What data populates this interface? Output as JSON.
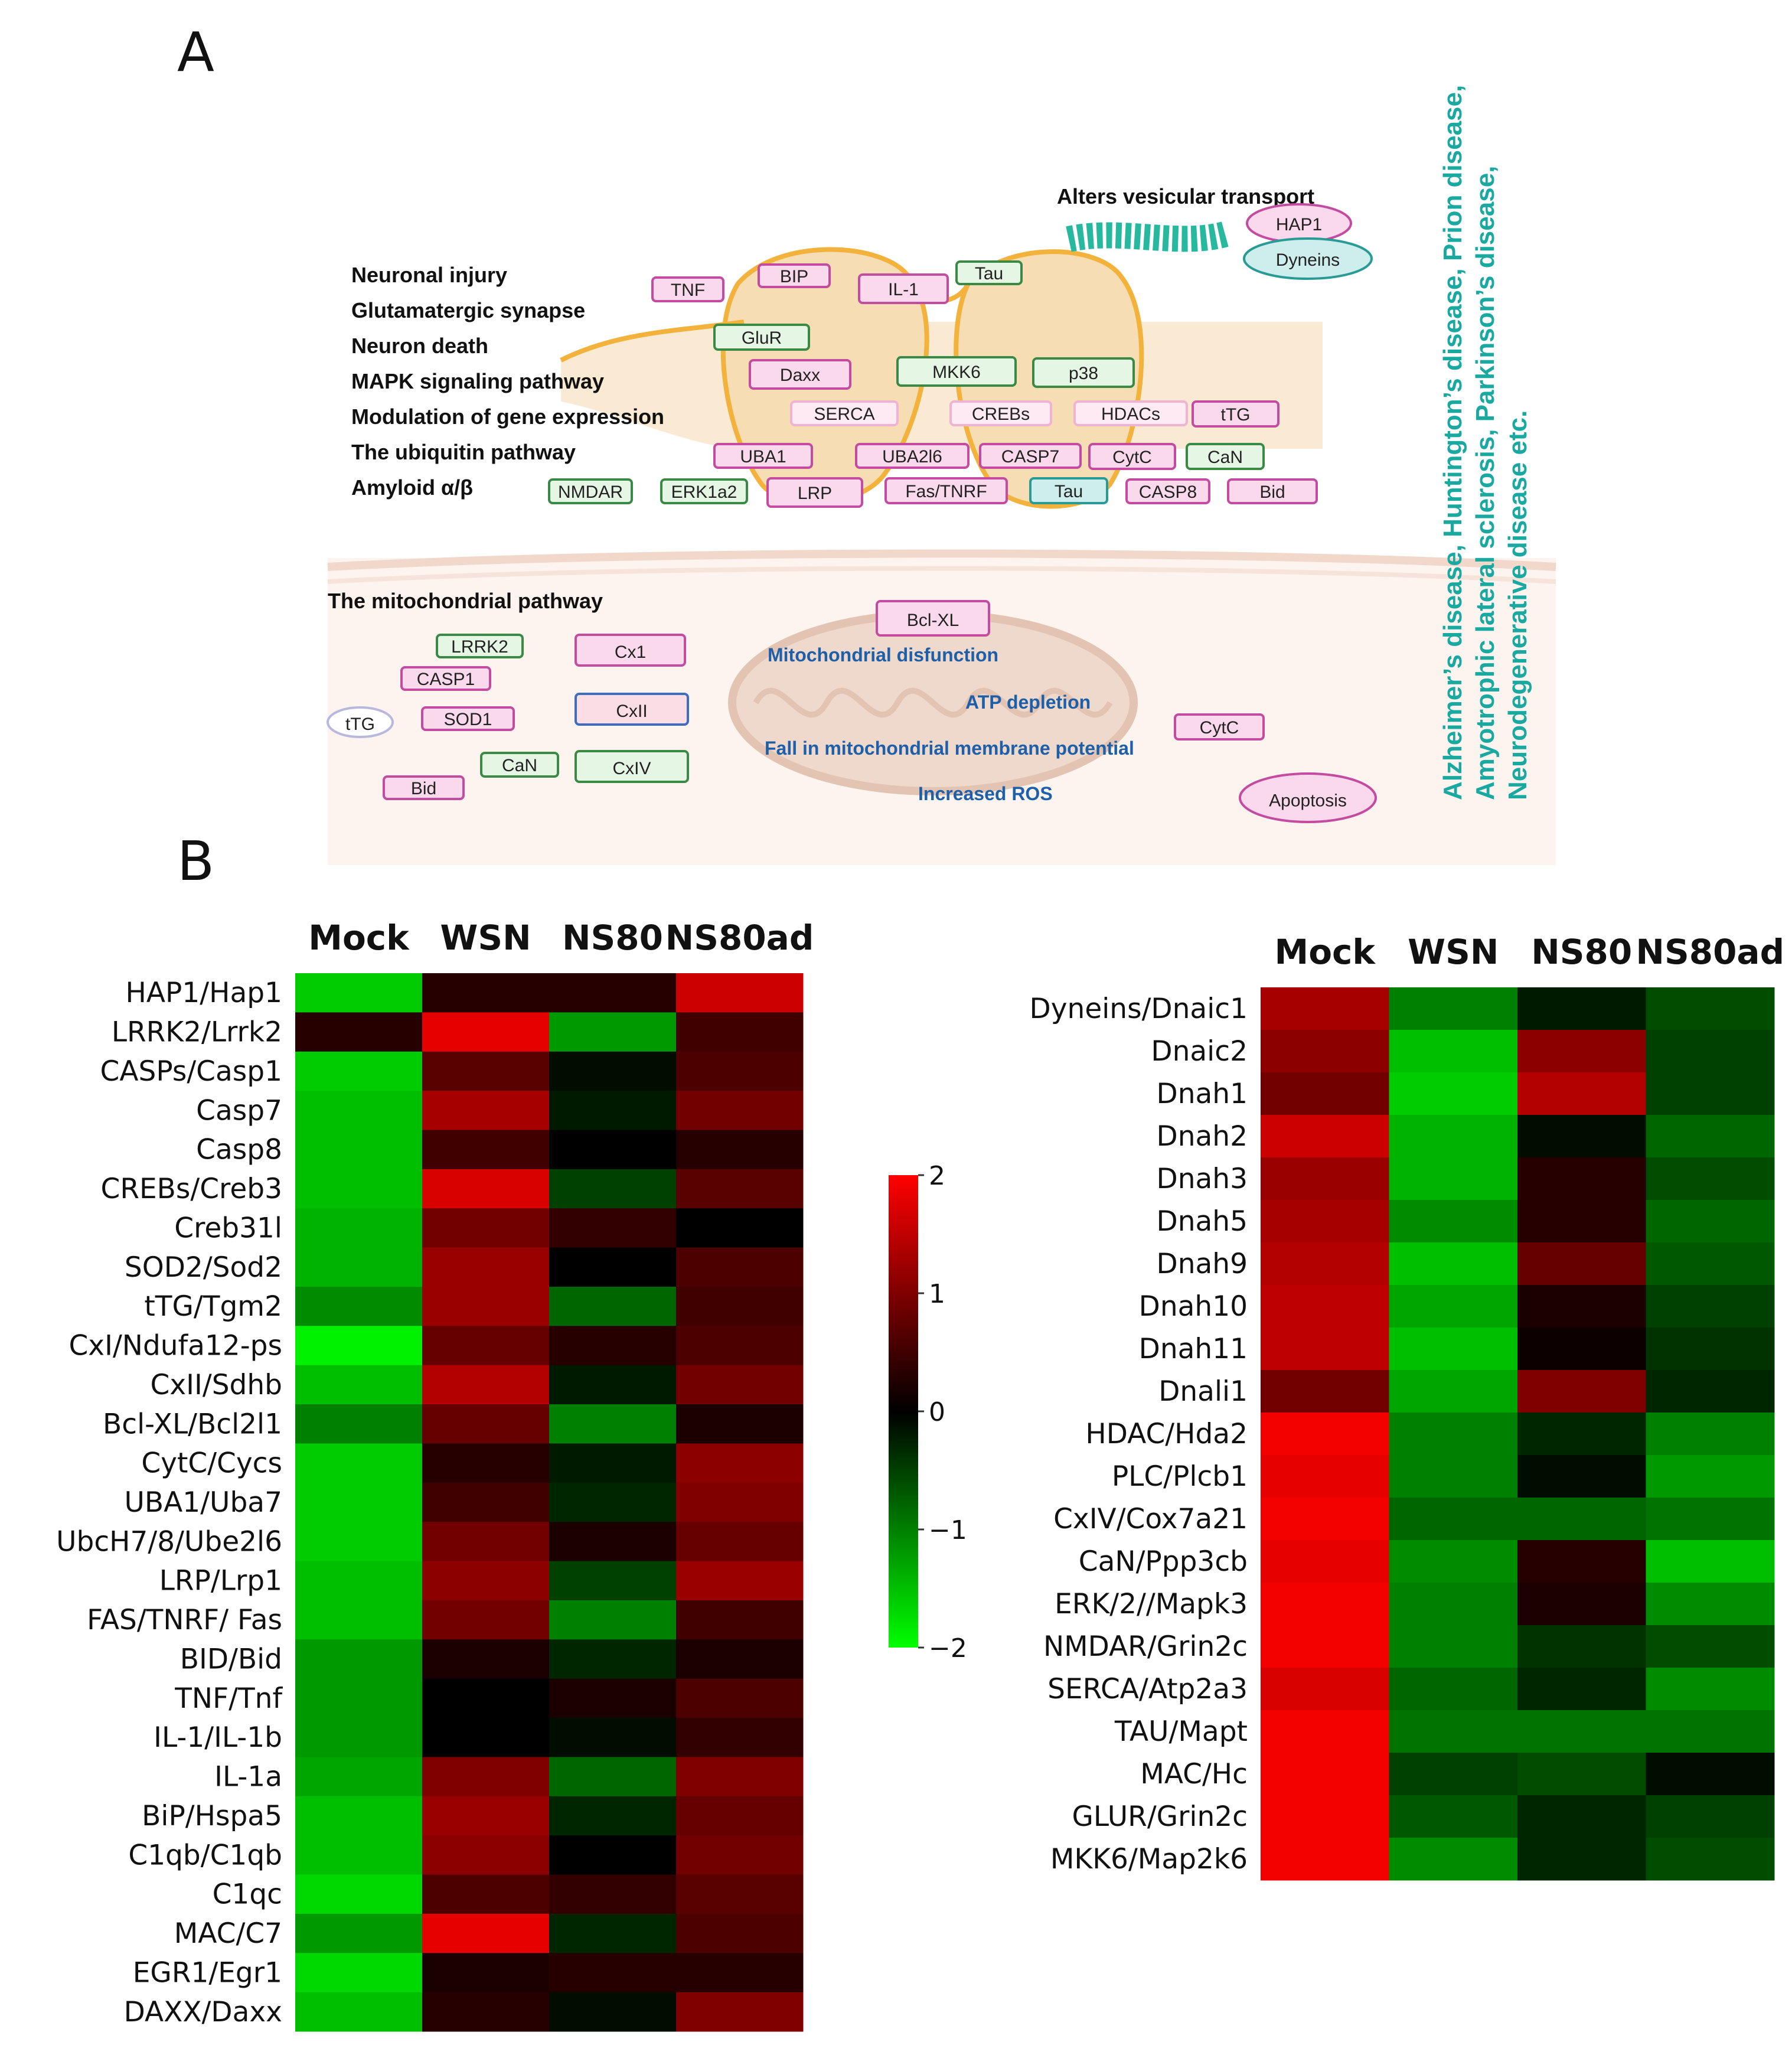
{
  "panel_a": {
    "label": "A",
    "side_labels": [
      "Neuronal injury",
      "Glutamatergic synapse",
      "Neuron death",
      "MAPK signaling pathway",
      "Modulation of gene expression",
      "The ubiquitin pathway",
      "Amyloid α/β"
    ],
    "vesicular_label": "Alters vesicular transport",
    "synapse_nodes": [
      {
        "text": "TNF",
        "color": "pink"
      },
      {
        "text": "BIP",
        "color": "pink"
      },
      {
        "text": "IL-1",
        "color": "pink"
      },
      {
        "text": "Tau",
        "color": "green"
      },
      {
        "text": "GluR",
        "color": "green"
      },
      {
        "text": "Daxx",
        "color": "pink"
      },
      {
        "text": "MKK6",
        "color": "green"
      },
      {
        "text": "p38",
        "color": "green"
      },
      {
        "text": "SERCA",
        "color": "lightpink"
      },
      {
        "text": "CREBs",
        "color": "lightpink"
      },
      {
        "text": "HDACs",
        "color": "lightpink"
      },
      {
        "text": "tTG",
        "color": "pink"
      },
      {
        "text": "UBA1",
        "color": "pink"
      },
      {
        "text": "UBA2l6",
        "color": "pink"
      },
      {
        "text": "CASP7",
        "color": "pink"
      },
      {
        "text": "CytC",
        "color": "pink"
      },
      {
        "text": "CaN",
        "color": "green"
      },
      {
        "text": "NMDAR",
        "color": "green"
      },
      {
        "text": "ERK1a2",
        "color": "green"
      },
      {
        "text": "LRP",
        "color": "pink"
      },
      {
        "text": "Fas/TNRF",
        "color": "pink"
      },
      {
        "text": "Tau",
        "color": "teal"
      },
      {
        "text": "CASP8",
        "color": "pink"
      },
      {
        "text": "Bid",
        "color": "pink"
      }
    ],
    "hap1": "HAP1",
    "dyneins": "Dyneins",
    "mito_title": "The mitochondrial pathway",
    "mito_nodes": [
      {
        "text": "LRRK2",
        "color": "green"
      },
      {
        "text": "CASP1",
        "color": "pink"
      },
      {
        "text": "tTG",
        "color": "lavender"
      },
      {
        "text": "SOD1",
        "color": "pink"
      },
      {
        "text": "Bid",
        "color": "pink"
      },
      {
        "text": "CaN",
        "color": "green"
      },
      {
        "text": "Cx1",
        "color": "pink"
      },
      {
        "text": "CxII",
        "color": "blue"
      },
      {
        "text": "CxIV",
        "color": "green"
      },
      {
        "text": "Bcl-XL",
        "color": "pink"
      },
      {
        "text": "CytC",
        "color": "pink"
      },
      {
        "text": "Apoptosis",
        "color": "pink"
      }
    ],
    "mito_effects": [
      "Mitochondrial disfunction",
      "ATP depletion",
      "Fall in mitochondrial membrane potential",
      "Increased ROS"
    ],
    "disease_lines": [
      "Alzheimer’s disease, Huntington’s disease, Prion disease,",
      "Amyotrophic lateral sclerosis, Parkinson’s disease,",
      "Neurodegenerative disease etc."
    ]
  },
  "panel_b": {
    "label": "B",
    "colorbar": {
      "ticks": [
        "2",
        "1",
        "0",
        "−1",
        "−2"
      ],
      "min": -2,
      "max": 2,
      "low_color": "#00ff00",
      "mid_color": "#000000",
      "high_color": "#ff0000"
    },
    "heatmaps": [
      {
        "columns": [
          "Mock",
          "WSN",
          "NS80",
          "NS80ad"
        ],
        "rows": [
          {
            "label": "HAP1/Hap1",
            "values": [
              -1.6,
              0.3,
              0.3,
              1.6
            ]
          },
          {
            "label": "LRRK2/Lrrk2",
            "values": [
              0.3,
              1.8,
              -1.2,
              0.5
            ]
          },
          {
            "label": "CASPs/Casp1",
            "values": [
              -1.6,
              0.7,
              -0.1,
              0.6
            ]
          },
          {
            "label": "Casp7",
            "values": [
              -1.5,
              1.3,
              -0.2,
              0.9
            ]
          },
          {
            "label": "Casp8",
            "values": [
              -1.5,
              0.5,
              0.0,
              0.3
            ]
          },
          {
            "label": "CREBs/Creb3",
            "values": [
              -1.5,
              1.7,
              -0.5,
              0.7
            ]
          },
          {
            "label": "Creb31l",
            "values": [
              -1.4,
              0.9,
              0.4,
              0.0
            ]
          },
          {
            "label": "SOD2/Sod2",
            "values": [
              -1.4,
              1.2,
              0.0,
              0.6
            ]
          },
          {
            "label": "tTG/Tgm2",
            "values": [
              -1.1,
              1.2,
              -0.8,
              0.5
            ]
          },
          {
            "label": "CxI/Ndufa12-ps",
            "values": [
              -1.9,
              0.8,
              0.3,
              0.6
            ]
          },
          {
            "label": "CxII/Sdhb",
            "values": [
              -1.5,
              1.4,
              -0.2,
              0.9
            ]
          },
          {
            "label": "Bcl-XL/Bcl2l1",
            "values": [
              -1.0,
              0.8,
              -1.0,
              0.2
            ]
          },
          {
            "label": "CytC/Cycs",
            "values": [
              -1.6,
              0.3,
              -0.2,
              1.1
            ]
          },
          {
            "label": "UBA1/Uba7",
            "values": [
              -1.6,
              0.5,
              -0.3,
              1.0
            ]
          },
          {
            "label": "UbcH7/8/Ube2l6",
            "values": [
              -1.6,
              0.9,
              0.2,
              0.8
            ]
          },
          {
            "label": "LRP/Lrp1",
            "values": [
              -1.5,
              1.1,
              -0.5,
              1.2
            ]
          },
          {
            "label": "FAS/TNRF/ Fas",
            "values": [
              -1.5,
              0.9,
              -1.0,
              0.5
            ]
          },
          {
            "label": "BID/Bid",
            "values": [
              -1.2,
              0.2,
              -0.3,
              0.2
            ]
          },
          {
            "label": "TNF/Tnf",
            "values": [
              -1.2,
              0.0,
              0.2,
              0.6
            ]
          },
          {
            "label": "IL-1/IL-1b",
            "values": [
              -1.2,
              0.0,
              -0.1,
              0.4
            ]
          },
          {
            "label": "IL-1a",
            "values": [
              -1.3,
              1.0,
              -0.8,
              1.0
            ]
          },
          {
            "label": "BiP/Hspa5",
            "values": [
              -1.5,
              1.2,
              -0.3,
              0.8
            ]
          },
          {
            "label": "C1qb/C1qb",
            "values": [
              -1.5,
              1.1,
              0.0,
              0.9
            ]
          },
          {
            "label": "C1qc",
            "values": [
              -1.7,
              0.6,
              0.4,
              0.7
            ]
          },
          {
            "label": "MAC/C7",
            "values": [
              -1.2,
              1.8,
              -0.3,
              0.6
            ]
          },
          {
            "label": "EGR1/Egr1",
            "values": [
              -1.7,
              0.2,
              0.3,
              0.3
            ]
          },
          {
            "label": "DAXX/Daxx",
            "values": [
              -1.5,
              0.3,
              -0.1,
              1.0
            ]
          }
        ]
      },
      {
        "columns": [
          "Mock",
          "WSN",
          "NS80",
          "NS80ad"
        ],
        "rows": [
          {
            "label": "Dyneins/Dnaic1",
            "values": [
              1.3,
              -1.0,
              -0.2,
              -0.6
            ]
          },
          {
            "label": "Dnaic2",
            "values": [
              1.1,
              -1.5,
              1.1,
              -0.5
            ]
          },
          {
            "label": "Dnah1",
            "values": [
              0.9,
              -1.6,
              1.4,
              -0.5
            ]
          },
          {
            "label": "Dnah2",
            "values": [
              1.6,
              -1.4,
              -0.1,
              -0.8
            ]
          },
          {
            "label": "Dnah3",
            "values": [
              1.2,
              -1.4,
              0.3,
              -0.6
            ]
          },
          {
            "label": "Dnah5",
            "values": [
              1.3,
              -1.1,
              0.3,
              -0.8
            ]
          },
          {
            "label": "Dnah9",
            "values": [
              1.4,
              -1.5,
              0.8,
              -0.7
            ]
          },
          {
            "label": "Dnah10",
            "values": [
              1.5,
              -1.3,
              0.2,
              -0.5
            ]
          },
          {
            "label": "Dnah11",
            "values": [
              1.5,
              -1.5,
              0.1,
              -0.4
            ]
          },
          {
            "label": "Dnali1",
            "values": [
              0.9,
              -1.3,
              1.0,
              -0.3
            ]
          },
          {
            "label": "HDAC/Hda2",
            "values": [
              1.9,
              -1.0,
              -0.3,
              -1.0
            ]
          },
          {
            "label": "PLC/Plcb1",
            "values": [
              1.8,
              -1.0,
              -0.1,
              -1.2
            ]
          },
          {
            "label": "CxIV/Cox7a21",
            "values": [
              1.9,
              -0.8,
              -0.8,
              -0.9
            ]
          },
          {
            "label": "CaN/Ppp3cb",
            "values": [
              1.8,
              -1.1,
              0.3,
              -1.5
            ]
          },
          {
            "label": "ERK/2//Mapk3",
            "values": [
              1.9,
              -1.0,
              0.2,
              -1.1
            ]
          },
          {
            "label": "NMDAR/Grin2c",
            "values": [
              1.9,
              -1.0,
              -0.4,
              -0.6
            ]
          },
          {
            "label": "SERCA/Atp2a3",
            "values": [
              1.7,
              -0.8,
              -0.3,
              -1.1
            ]
          },
          {
            "label": "TAU/Mapt",
            "values": [
              1.9,
              -0.9,
              -0.9,
              -0.9
            ]
          },
          {
            "label": "MAC/Hc",
            "values": [
              1.9,
              -0.5,
              -0.6,
              -0.1
            ]
          },
          {
            "label": "GLUR/Grin2c",
            "values": [
              1.9,
              -0.7,
              -0.3,
              -0.5
            ]
          },
          {
            "label": "MKK6/Map2k6",
            "values": [
              1.9,
              -1.1,
              -0.3,
              -0.6
            ]
          }
        ]
      }
    ]
  }
}
